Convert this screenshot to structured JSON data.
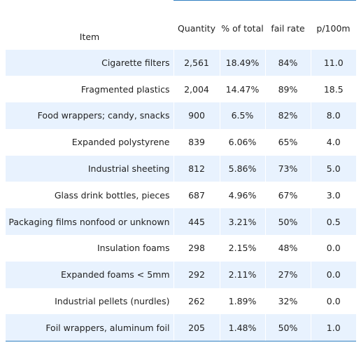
{
  "table": {
    "columns": {
      "item": "Item",
      "quantity": "Quantity",
      "pct_total": "% of total",
      "fail_rate": "fail rate",
      "p100m": "p/100m"
    },
    "rows": [
      {
        "item": "Cigarette filters",
        "quantity": "2,561",
        "pct_total": "18.49%",
        "fail_rate": "84%",
        "p100m": "11.0"
      },
      {
        "item": "Fragmented plastics",
        "quantity": "2,004",
        "pct_total": "14.47%",
        "fail_rate": "89%",
        "p100m": "18.5"
      },
      {
        "item": "Food wrappers; candy, snacks",
        "quantity": "900",
        "pct_total": "6.5%",
        "fail_rate": "82%",
        "p100m": "8.0"
      },
      {
        "item": "Expanded polystyrene",
        "quantity": "839",
        "pct_total": "6.06%",
        "fail_rate": "65%",
        "p100m": "4.0"
      },
      {
        "item": "Industrial sheeting",
        "quantity": "812",
        "pct_total": "5.86%",
        "fail_rate": "73%",
        "p100m": "5.0"
      },
      {
        "item": "Glass drink bottles, pieces",
        "quantity": "687",
        "pct_total": "4.96%",
        "fail_rate": "67%",
        "p100m": "3.0"
      },
      {
        "item": "Packaging films nonfood or unknown",
        "quantity": "445",
        "pct_total": "3.21%",
        "fail_rate": "50%",
        "p100m": "0.5"
      },
      {
        "item": "Insulation foams",
        "quantity": "298",
        "pct_total": "2.15%",
        "fail_rate": "48%",
        "p100m": "0.0"
      },
      {
        "item": "Expanded foams < 5mm",
        "quantity": "292",
        "pct_total": "2.11%",
        "fail_rate": "27%",
        "p100m": "0.0"
      },
      {
        "item": "Industrial pellets (nurdles)",
        "quantity": "262",
        "pct_total": "1.89%",
        "fail_rate": "32%",
        "p100m": "0.0"
      },
      {
        "item": "Foil wrappers, aluminum foil",
        "quantity": "205",
        "pct_total": "1.48%",
        "fail_rate": "50%",
        "p100m": "1.0"
      }
    ]
  },
  "colors": {
    "band": "#e8f2fe",
    "rule": "#2f7fc1",
    "text": "#222222"
  }
}
